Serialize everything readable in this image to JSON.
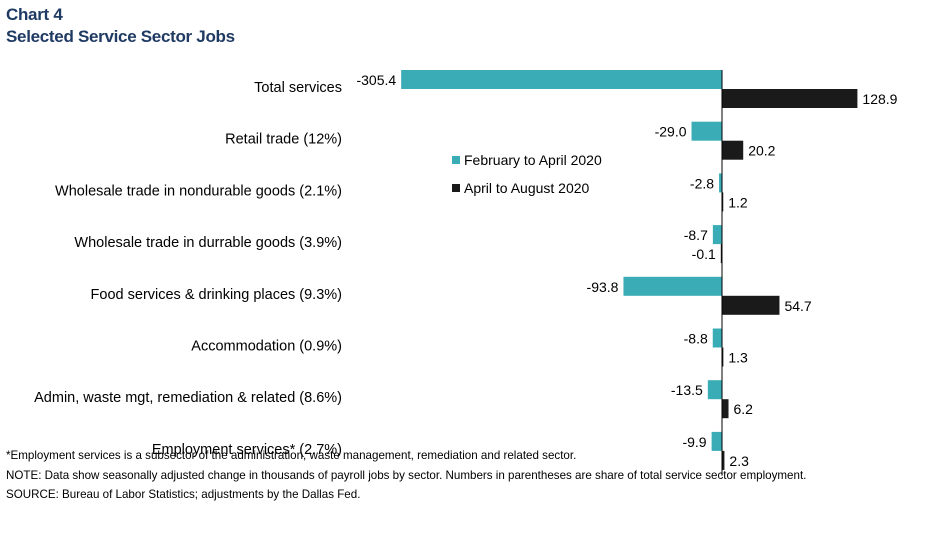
{
  "title": {
    "line1": "Chart 4",
    "line2": "Selected Service Sector Jobs"
  },
  "colors": {
    "title": "#1f3a63",
    "series1": "#3aacb6",
    "series2": "#1a1a1a"
  },
  "chart_data": {
    "type": "bar",
    "orientation": "horizontal",
    "title": "Selected Service Sector Jobs",
    "categories": [
      "Total services",
      "Retail trade (12%)",
      "Wholesale trade in nondurable goods (2.1%)",
      "Wholesale trade in durrable goods (3.9%)",
      "Food services  & drinking places (9.3%)",
      "Accommodation (0.9%)",
      "Admin, waste mgt, remediation & related (8.6%)",
      "Employment services* (2.7%)"
    ],
    "series": [
      {
        "name": "February to April 2020",
        "values": [
          -305.4,
          -29.0,
          -2.8,
          -8.7,
          -93.8,
          -8.8,
          -13.5,
          -9.9
        ],
        "labels": [
          "-305.4",
          "-29.0",
          "-2.8",
          "-8.7",
          "-93.8",
          "-8.8",
          "-13.5",
          "-9.9"
        ]
      },
      {
        "name": "April to August 2020",
        "values": [
          128.9,
          20.2,
          1.2,
          -0.1,
          54.7,
          1.3,
          6.2,
          2.3
        ],
        "labels": [
          "128.9",
          "20.2",
          "1.2",
          "-0.1",
          "54.7",
          "1.3",
          "6.2",
          "2.3"
        ]
      }
    ],
    "xlabel": "",
    "ylabel": "",
    "xlim": [
      -310,
      200
    ],
    "legend": "center-left",
    "grid": false
  },
  "notes": {
    "footnote": "*Employment services is a subsector of the administration, waste management, remediation and related sector.",
    "note": "NOTE: Data show seasonally adjusted change in thousands of payroll jobs by sector. Numbers in parentheses are share of total service sector employment.",
    "source": "SOURCE: Bureau of Labor Statistics; adjustments by the Dallas Fed."
  }
}
